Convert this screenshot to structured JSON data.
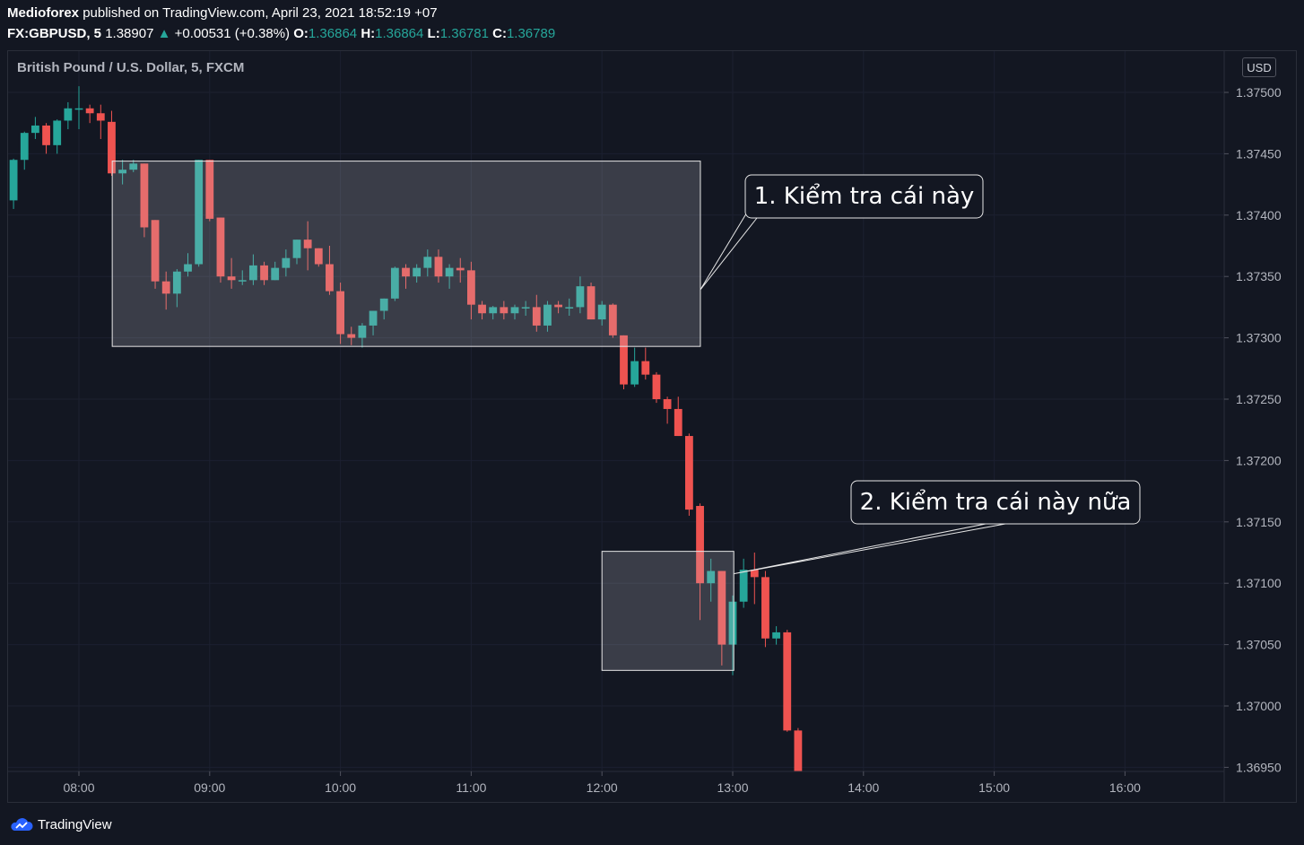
{
  "header": {
    "publisher": "Medioforex",
    "published_text": "published on TradingView.com, April 23, 2021 18:52:19 +07",
    "symbol": "FX:GBPUSD, 5",
    "last": "1.38907",
    "change": "+0.00531 (+0.38%)",
    "o_label": "O:",
    "o_value": "1.36864",
    "h_label": "H:",
    "h_value": "1.36864",
    "l_label": "L:",
    "l_value": "1.36781",
    "c_label": "C:",
    "c_value": "1.36789"
  },
  "chart": {
    "symbol_title": "British Pound / U.S. Dollar, 5, FXCM",
    "currency": "USD"
  },
  "footer": {
    "brand": "TradingView"
  },
  "colors": {
    "background": "#131722",
    "up": "#26a69a",
    "down": "#ef5350",
    "grid": "#2a2e39",
    "text": "#d1d4dc"
  },
  "chart_data": {
    "type": "candlestick",
    "y_ticks": [
      "1.37500",
      "1.37450",
      "1.37400",
      "1.37350",
      "1.37300",
      "1.37250",
      "1.37200",
      "1.37150",
      "1.37100",
      "1.37050",
      "1.37000",
      "1.36950"
    ],
    "x_ticks": [
      "08:00",
      "09:00",
      "10:00",
      "11:00",
      "12:00",
      "13:00",
      "14:00",
      "15:00",
      "16:00"
    ],
    "ylim": [
      1.3694,
      1.3752
    ],
    "annotations": [
      {
        "label": "1. Kiểm tra cái này",
        "box_time": [
          "08:15",
          "12:45"
        ],
        "box_price": [
          1.37293,
          1.37444
        ]
      },
      {
        "label": "2. Kiểm tra cái này nữa",
        "box_time": [
          "12:00",
          "13:00"
        ],
        "box_price": [
          1.37029,
          1.37126
        ]
      }
    ],
    "candles": [
      [
        1.37412,
        1.37445,
        1.37405,
        1.37446
      ],
      [
        1.37445,
        1.37467,
        1.37437,
        1.37468
      ],
      [
        1.37467,
        1.37473,
        1.37462,
        1.3748
      ],
      [
        1.37473,
        1.37457,
        1.3745,
        1.37475
      ],
      [
        1.37457,
        1.37477,
        1.3745,
        1.37478
      ],
      [
        1.37477,
        1.37487,
        1.3747,
        1.37492
      ],
      [
        1.37487,
        1.37487,
        1.3747,
        1.37505
      ],
      [
        1.37487,
        1.37483,
        1.37475,
        1.3749
      ],
      [
        1.37483,
        1.37477,
        1.37462,
        1.3749
      ],
      [
        1.37476,
        1.37434,
        1.37432,
        1.37485
      ],
      [
        1.37434,
        1.37437,
        1.37425,
        1.37445
      ],
      [
        1.37437,
        1.37442,
        1.37435,
        1.37445
      ],
      [
        1.37442,
        1.3739,
        1.37382,
        1.37442
      ],
      [
        1.37396,
        1.37346,
        1.3734,
        1.37396
      ],
      [
        1.37346,
        1.37336,
        1.37323,
        1.37354
      ],
      [
        1.37336,
        1.37354,
        1.37325,
        1.37356
      ],
      [
        1.37354,
        1.3736,
        1.3735,
        1.37369
      ],
      [
        1.3736,
        1.37445,
        1.37358,
        1.37445
      ],
      [
        1.37445,
        1.37397,
        1.37395,
        1.37445
      ],
      [
        1.37398,
        1.3735,
        1.37345,
        1.37398
      ],
      [
        1.3735,
        1.37347,
        1.3734,
        1.37365
      ],
      [
        1.37347,
        1.37347,
        1.37343,
        1.37355
      ],
      [
        1.37347,
        1.37359,
        1.37343,
        1.37368
      ],
      [
        1.37359,
        1.37347,
        1.37343,
        1.37362
      ],
      [
        1.37347,
        1.37357,
        1.37347,
        1.37362
      ],
      [
        1.37357,
        1.37365,
        1.3735,
        1.37372
      ],
      [
        1.37365,
        1.3738,
        1.3736,
        1.3738
      ],
      [
        1.3738,
        1.37373,
        1.37355,
        1.37395
      ],
      [
        1.37373,
        1.3736,
        1.37358,
        1.37373
      ],
      [
        1.3736,
        1.37338,
        1.37335,
        1.37375
      ],
      [
        1.37338,
        1.37303,
        1.37295,
        1.37345
      ],
      [
        1.37303,
        1.373,
        1.37294,
        1.37309
      ],
      [
        1.373,
        1.3731,
        1.37292,
        1.37312
      ],
      [
        1.3731,
        1.37322,
        1.37302,
        1.37322
      ],
      [
        1.37322,
        1.37332,
        1.37315,
        1.37332
      ],
      [
        1.37332,
        1.37357,
        1.3733,
        1.37358
      ],
      [
        1.37357,
        1.3735,
        1.3734,
        1.3736
      ],
      [
        1.3735,
        1.37357,
        1.37345,
        1.3736
      ],
      [
        1.37357,
        1.37366,
        1.3735,
        1.37372
      ],
      [
        1.37366,
        1.3735,
        1.37345,
        1.37372
      ],
      [
        1.3735,
        1.37357,
        1.3734,
        1.3736
      ],
      [
        1.37357,
        1.37355,
        1.37345,
        1.37365
      ],
      [
        1.37355,
        1.37327,
        1.37315,
        1.37362
      ],
      [
        1.37327,
        1.3732,
        1.37315,
        1.3733
      ],
      [
        1.3732,
        1.37325,
        1.37315,
        1.37326
      ],
      [
        1.37325,
        1.3732,
        1.37315,
        1.3733
      ],
      [
        1.3732,
        1.37325,
        1.37315,
        1.37327
      ],
      [
        1.37325,
        1.37325,
        1.37318,
        1.3733
      ],
      [
        1.37325,
        1.3731,
        1.37305,
        1.37335
      ],
      [
        1.3731,
        1.37327,
        1.37305,
        1.3733
      ],
      [
        1.37327,
        1.37325,
        1.3732,
        1.3733
      ],
      [
        1.37325,
        1.37325,
        1.37318,
        1.37332
      ],
      [
        1.37325,
        1.37342,
        1.3732,
        1.3735
      ],
      [
        1.37342,
        1.37315,
        1.37315,
        1.37345
      ],
      [
        1.37315,
        1.37327,
        1.3731,
        1.3733
      ],
      [
        1.37327,
        1.37302,
        1.373,
        1.37328
      ],
      [
        1.37302,
        1.37262,
        1.37258,
        1.37302
      ],
      [
        1.37262,
        1.37281,
        1.3726,
        1.37292
      ],
      [
        1.37281,
        1.3727,
        1.37266,
        1.37292
      ],
      [
        1.3727,
        1.3725,
        1.37247,
        1.37272
      ],
      [
        1.3725,
        1.37242,
        1.3723,
        1.37252
      ],
      [
        1.37242,
        1.3722,
        1.3722,
        1.37252
      ],
      [
        1.3722,
        1.3716,
        1.37155,
        1.37222
      ],
      [
        1.37163,
        1.371,
        1.3707,
        1.37165
      ],
      [
        1.371,
        1.3711,
        1.37085,
        1.3712
      ],
      [
        1.3711,
        1.3705,
        1.37033,
        1.3711
      ],
      [
        1.3705,
        1.37085,
        1.37025,
        1.3709
      ],
      [
        1.37085,
        1.37111,
        1.3708,
        1.3712
      ],
      [
        1.37111,
        1.37105,
        1.37083,
        1.37125
      ],
      [
        1.37105,
        1.37055,
        1.37048,
        1.3711
      ],
      [
        1.37055,
        1.3706,
        1.3705,
        1.37065
      ],
      [
        1.3706,
        1.3698,
        1.36979,
        1.37062
      ],
      [
        1.3698,
        1.36944,
        1.36944,
        1.36982
      ]
    ]
  }
}
